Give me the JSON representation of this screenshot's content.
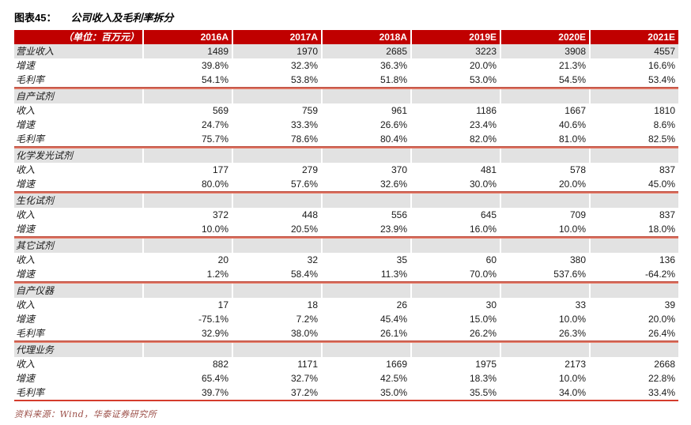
{
  "figure": {
    "label": "图表45：",
    "title": "公司收入及毛利率拆分"
  },
  "table": {
    "unit_label": "（单位：百万元）",
    "years": [
      "2016A",
      "2017A",
      "2018A",
      "2019E",
      "2020E",
      "2021E"
    ],
    "sections": [
      {
        "name": null,
        "rows": [
          {
            "label": "营业收入",
            "highlight": true,
            "values": [
              "1489",
              "1970",
              "2685",
              "3223",
              "3908",
              "4557"
            ]
          },
          {
            "label": "增速",
            "values": [
              "39.8%",
              "32.3%",
              "36.3%",
              "20.0%",
              "21.3%",
              "16.6%"
            ]
          },
          {
            "label": "毛利率",
            "values": [
              "54.1%",
              "53.8%",
              "51.8%",
              "53.0%",
              "54.5%",
              "53.4%"
            ]
          }
        ]
      },
      {
        "name": "自产试剂",
        "rows": [
          {
            "label": "收入",
            "values": [
              "569",
              "759",
              "961",
              "1186",
              "1667",
              "1810"
            ]
          },
          {
            "label": "增速",
            "values": [
              "24.7%",
              "33.3%",
              "26.6%",
              "23.4%",
              "40.6%",
              "8.6%"
            ]
          },
          {
            "label": "毛利率",
            "values": [
              "75.7%",
              "78.6%",
              "80.4%",
              "82.0%",
              "81.0%",
              "82.5%"
            ]
          }
        ]
      },
      {
        "name": "化学发光试剂",
        "rows": [
          {
            "label": "收入",
            "values": [
              "177",
              "279",
              "370",
              "481",
              "578",
              "837"
            ]
          },
          {
            "label": "增速",
            "values": [
              "80.0%",
              "57.6%",
              "32.6%",
              "30.0%",
              "20.0%",
              "45.0%"
            ]
          }
        ]
      },
      {
        "name": "生化试剂",
        "rows": [
          {
            "label": "收入",
            "values": [
              "372",
              "448",
              "556",
              "645",
              "709",
              "837"
            ]
          },
          {
            "label": "增速",
            "values": [
              "10.0%",
              "20.5%",
              "23.9%",
              "16.0%",
              "10.0%",
              "18.0%"
            ]
          }
        ]
      },
      {
        "name": "其它试剂",
        "rows": [
          {
            "label": "收入",
            "values": [
              "20",
              "32",
              "35",
              "60",
              "380",
              "136"
            ]
          },
          {
            "label": "增速",
            "values": [
              "1.2%",
              "58.4%",
              "11.3%",
              "70.0%",
              "537.6%",
              "-64.2%"
            ]
          }
        ]
      },
      {
        "name": "自产仪器",
        "rows": [
          {
            "label": "收入",
            "values": [
              "17",
              "18",
              "26",
              "30",
              "33",
              "39"
            ]
          },
          {
            "label": "增速",
            "values": [
              "-75.1%",
              "7.2%",
              "45.4%",
              "15.0%",
              "10.0%",
              "20.0%"
            ]
          },
          {
            "label": "毛利率",
            "values": [
              "32.9%",
              "38.0%",
              "26.1%",
              "26.2%",
              "26.3%",
              "26.4%"
            ]
          }
        ]
      },
      {
        "name": "代理业务",
        "rows": [
          {
            "label": "收入",
            "values": [
              "882",
              "1171",
              "1669",
              "1975",
              "2173",
              "2668"
            ]
          },
          {
            "label": "增速",
            "values": [
              "65.4%",
              "32.7%",
              "42.5%",
              "18.3%",
              "10.0%",
              "22.8%"
            ]
          },
          {
            "label": "毛利率",
            "values": [
              "39.7%",
              "37.2%",
              "35.0%",
              "35.5%",
              "34.0%",
              "33.4%"
            ]
          }
        ]
      }
    ]
  },
  "footer": {
    "source": "资料来源：Wind，华泰证券研究所"
  },
  "colors": {
    "header_bg": "#C00000",
    "header_text": "#FFFFFF",
    "band_bg": "#E2E2E2",
    "separator_dark": "#B4493D",
    "separator_light": "#F0917E",
    "bottom_line": "#D43C2C",
    "source_text": "#9C4F48"
  }
}
